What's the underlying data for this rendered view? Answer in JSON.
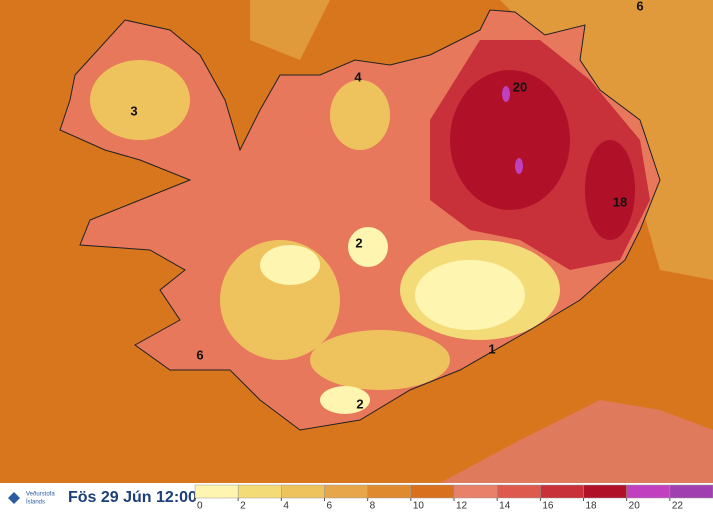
{
  "map_labels": [
    3,
    4,
    20,
    18,
    2,
    6,
    6,
    2,
    1
  ],
  "footer": {
    "logo_text": [
      "Veðurstofa",
      "Íslands"
    ],
    "timestamp": "Fös 29 Jún 12:00"
  },
  "legend": {
    "ticks": [
      0,
      2,
      4,
      6,
      8,
      10,
      12,
      14,
      16,
      18,
      20,
      22
    ],
    "colors": [
      "#fdf5b0",
      "#f3dc78",
      "#eec35e",
      "#e8a64a",
      "#e08a30",
      "#d8701e",
      "#e8806a",
      "#de5a4c",
      "#c8303a",
      "#b01028",
      "#c040c0",
      "#a040b0"
    ]
  }
}
